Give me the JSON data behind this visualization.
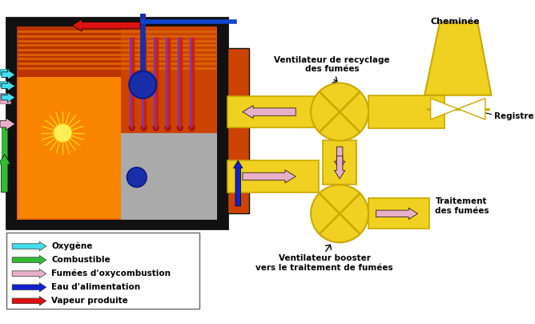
{
  "bg_color": "#ffffff",
  "yellow": "#f0d020",
  "yellow_edge": "#c8a800",
  "yellow_light": "#f5e060",
  "boiler_outer": "#111111",
  "boiler_orange_dark": "#cc4400",
  "boiler_orange_mid": "#ee6600",
  "boiler_orange_light": "#ff9900",
  "boiler_top_bg": "#bb3300",
  "tube_color": "#cc5500",
  "pipe_color": "#aa1100",
  "pump_color": "#1a2eaa",
  "pump_edge": "#0a1a88",
  "sun_ray": "#ffdd00",
  "sun_center": "#ffee55",
  "grey_area": "#b0b0b0",
  "arrow_pink": "#e8b0c8",
  "arrow_cyan": "#44ddee",
  "arrow_green": "#33bb33",
  "arrow_blue": "#1122cc",
  "arrow_red": "#dd1111",
  "legend_items": [
    {
      "label": "Oxygène",
      "color": "#44ddee"
    },
    {
      "label": "Combustible",
      "color": "#33bb33"
    },
    {
      "label": "Fumées d'oxycombustion",
      "color": "#e8b0c8"
    },
    {
      "label": "Eau d'alimentation",
      "color": "#1122cc"
    },
    {
      "label": "Vapeur produite",
      "color": "#dd1111"
    }
  ],
  "label_fan1": "Ventilateur de recyclage\ndes fumées",
  "label_fan2": "Ventilateur booster\nvers le traitement de fumées",
  "label_chimney": "Cheminée",
  "label_traitement": "Traitement\ndes fumées",
  "label_registre": "Registre"
}
